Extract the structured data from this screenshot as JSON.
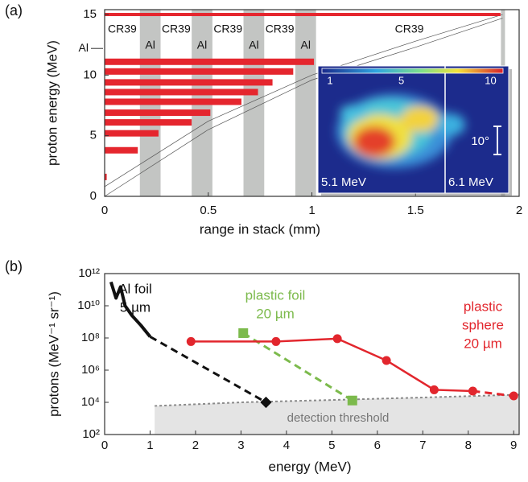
{
  "chart_data": [
    {
      "type": "bar",
      "orientation": "horizontal",
      "panel": "(a)",
      "xlabel": "range in stack (mm)",
      "ylabel": "proton energy (MeV)",
      "xlim": [
        0,
        2
      ],
      "ylim": [
        0,
        15.4
      ],
      "xticks": [
        0,
        0.5,
        1,
        1.5,
        2
      ],
      "yticks": [
        0,
        5,
        10,
        15
      ],
      "color": "#e5262e",
      "y": [
        15,
        11.1,
        10.3,
        9.4,
        8.6,
        7.8,
        6.9,
        6.1,
        5.2,
        3.8,
        1.6
      ],
      "values": [
        1.91,
        1.01,
        0.91,
        0.81,
        0.74,
        0.66,
        0.51,
        0.42,
        0.26,
        0.16,
        0.01
      ],
      "layer_color": "#c3c5c3",
      "layers": [
        {
          "material": "CR39",
          "range": [
            0,
            0.17
          ],
          "shaded": false
        },
        {
          "material": "Al",
          "range": [
            0.17,
            0.27
          ],
          "shaded": true
        },
        {
          "material": "CR39",
          "range": [
            0.27,
            0.42
          ],
          "shaded": false
        },
        {
          "material": "Al",
          "range": [
            0.42,
            0.52
          ],
          "shaded": true
        },
        {
          "material": "CR39",
          "range": [
            0.52,
            0.67
          ],
          "shaded": false
        },
        {
          "material": "Al",
          "range": [
            0.67,
            0.77
          ],
          "shaded": true
        },
        {
          "material": "CR39",
          "range": [
            0.77,
            0.92
          ],
          "shaded": false
        },
        {
          "material": "Al",
          "range": [
            0.92,
            1.02
          ],
          "shaded": true
        },
        {
          "material": "CR39",
          "range": [
            1.02,
            1.92
          ],
          "shaded": false
        }
      ],
      "side_label": {
        "text": "Al",
        "y": 12.2
      },
      "curves": [
        {
          "x": [
            0,
            0.5,
            1,
            1.5,
            1.92
          ],
          "y": [
            0.8,
            6.2,
            10.0,
            12.8,
            15
          ]
        },
        {
          "x": [
            0,
            0.5,
            1,
            1.5,
            1.92
          ],
          "y": [
            0,
            5.5,
            9.6,
            12.3,
            14.7
          ]
        }
      ],
      "inset": {
        "colorbar": {
          "lim": [
            0.55,
            10.7
          ],
          "ticks": [
            1,
            5,
            10
          ]
        },
        "left_label": "5.1 MeV",
        "right_label": "6.1 MeV",
        "scale_label": "10°"
      }
    },
    {
      "type": "line",
      "panel": "(b)",
      "xlabel": "energy (MeV)",
      "ylabel": "protons (MeV⁻¹ sr⁻¹)",
      "log_y": true,
      "xlim": [
        0,
        9.12
      ],
      "ylim": [
        100,
        1000000000000.0
      ],
      "xticks": [
        0,
        1,
        2,
        3,
        4,
        5,
        6,
        7,
        8,
        9
      ],
      "yticks": [
        {
          "value": 100,
          "label": "10²"
        },
        {
          "value": 10000.0,
          "label": "10⁴"
        },
        {
          "value": 1000000.0,
          "label": "10⁶"
        },
        {
          "value": 100000000.0,
          "label": "10⁸"
        },
        {
          "value": 10000000000.0,
          "label": "10¹⁰"
        },
        {
          "value": 1000000000000.0,
          "label": "10¹²"
        }
      ],
      "series": [
        {
          "name": [
            "Al foil",
            "5 µm"
          ],
          "color": "#111111",
          "x": [
            0.14,
            0.25,
            0.35,
            0.45,
            0.6,
            0.8,
            1.0,
            3.55
          ],
          "values": [
            300000000000.0,
            30000000000.0,
            150000000000.0,
            10000000000.0,
            2500000000.0,
            600000000.0,
            120000000.0,
            10000.0
          ],
          "dashed_from": 6,
          "marker": "diamond",
          "marker_at": [
            7
          ]
        },
        {
          "name": [
            "plastic foil",
            "20 µm"
          ],
          "color": "#7cba4c",
          "x": [
            3.05,
            5.45
          ],
          "values": [
            200000000.0,
            13000.0
          ],
          "dashed_from": 0,
          "marker": "square",
          "marker_at": [
            0,
            1
          ]
        },
        {
          "name": [
            "plastic",
            "sphere",
            "20 µm"
          ],
          "color": "#e2262d",
          "x": [
            1.9,
            3.77,
            5.12,
            6.2,
            7.25,
            8.1,
            9.0
          ],
          "values": [
            60000000.0,
            60000000.0,
            90000000.0,
            4000000.0,
            60000.0,
            50000.0,
            25000.0
          ],
          "dashed_from": 5,
          "marker": "circle",
          "marker_at": [
            0,
            1,
            2,
            3,
            4,
            5,
            6
          ]
        }
      ],
      "threshold": {
        "label": "detection threshold",
        "x": [
          1.1,
          3,
          5,
          7,
          9.12
        ],
        "values": [
          6000.0,
          10000.0,
          14000.0,
          20000.0,
          30000.0
        ],
        "color": "#8a8a8a",
        "fill": "#e4e4e4"
      }
    }
  ]
}
